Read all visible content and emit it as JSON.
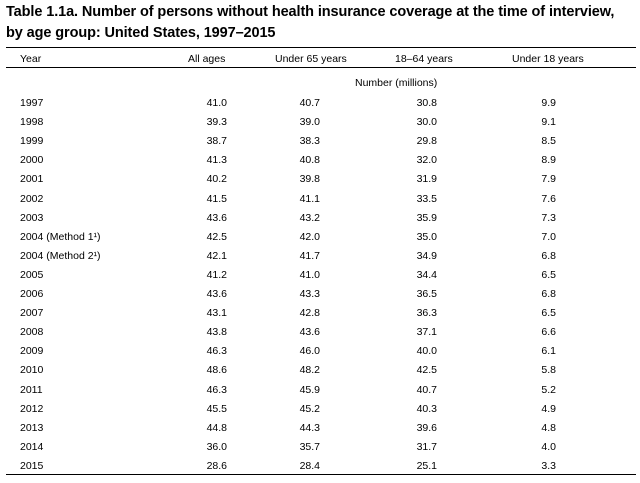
{
  "title_line1": "Table 1.1a. Number of persons without health insurance coverage at the time of interview,",
  "title_line2": "by age group: United States, 1997–2015",
  "headers": [
    "Year",
    "All ages",
    "Under 65 years",
    "18–64 years",
    "Under 18 years"
  ],
  "unit_label": "Number (millions)",
  "rows": [
    [
      "1997",
      "41.0",
      "40.7",
      "30.8",
      "9.9"
    ],
    [
      "1998",
      "39.3",
      "39.0",
      "30.0",
      "9.1"
    ],
    [
      "1999",
      "38.7",
      "38.3",
      "29.8",
      "8.5"
    ],
    [
      "2000",
      "41.3",
      "40.8",
      "32.0",
      "8.9"
    ],
    [
      "2001",
      "40.2",
      "39.8",
      "31.9",
      "7.9"
    ],
    [
      "2002",
      "41.5",
      "41.1",
      "33.5",
      "7.6"
    ],
    [
      "2003",
      "43.6",
      "43.2",
      "35.9",
      "7.3"
    ],
    [
      "2004 (Method 1¹)",
      "42.5",
      "42.0",
      "35.0",
      "7.0"
    ],
    [
      "2004 (Method 2¹)",
      "42.1",
      "41.7",
      "34.9",
      "6.8"
    ],
    [
      "2005",
      "41.2",
      "41.0",
      "34.4",
      "6.5"
    ],
    [
      "2006",
      "43.6",
      "43.3",
      "36.5",
      "6.8"
    ],
    [
      "2007",
      "43.1",
      "42.8",
      "36.3",
      "6.5"
    ],
    [
      "2008",
      "43.8",
      "43.6",
      "37.1",
      "6.6"
    ],
    [
      "2009",
      "46.3",
      "46.0",
      "40.0",
      "6.1"
    ],
    [
      "2010",
      "48.6",
      "48.2",
      "42.5",
      "5.8"
    ],
    [
      "2011",
      "46.3",
      "45.9",
      "40.7",
      "5.2"
    ],
    [
      "2012",
      "45.5",
      "45.2",
      "40.3",
      "4.9"
    ],
    [
      "2013",
      "44.8",
      "44.3",
      "39.6",
      "4.8"
    ],
    [
      "2014",
      "36.0",
      "35.7",
      "31.7",
      "4.0"
    ],
    [
      "2015",
      "28.6",
      "28.4",
      "25.1",
      "3.3"
    ]
  ]
}
